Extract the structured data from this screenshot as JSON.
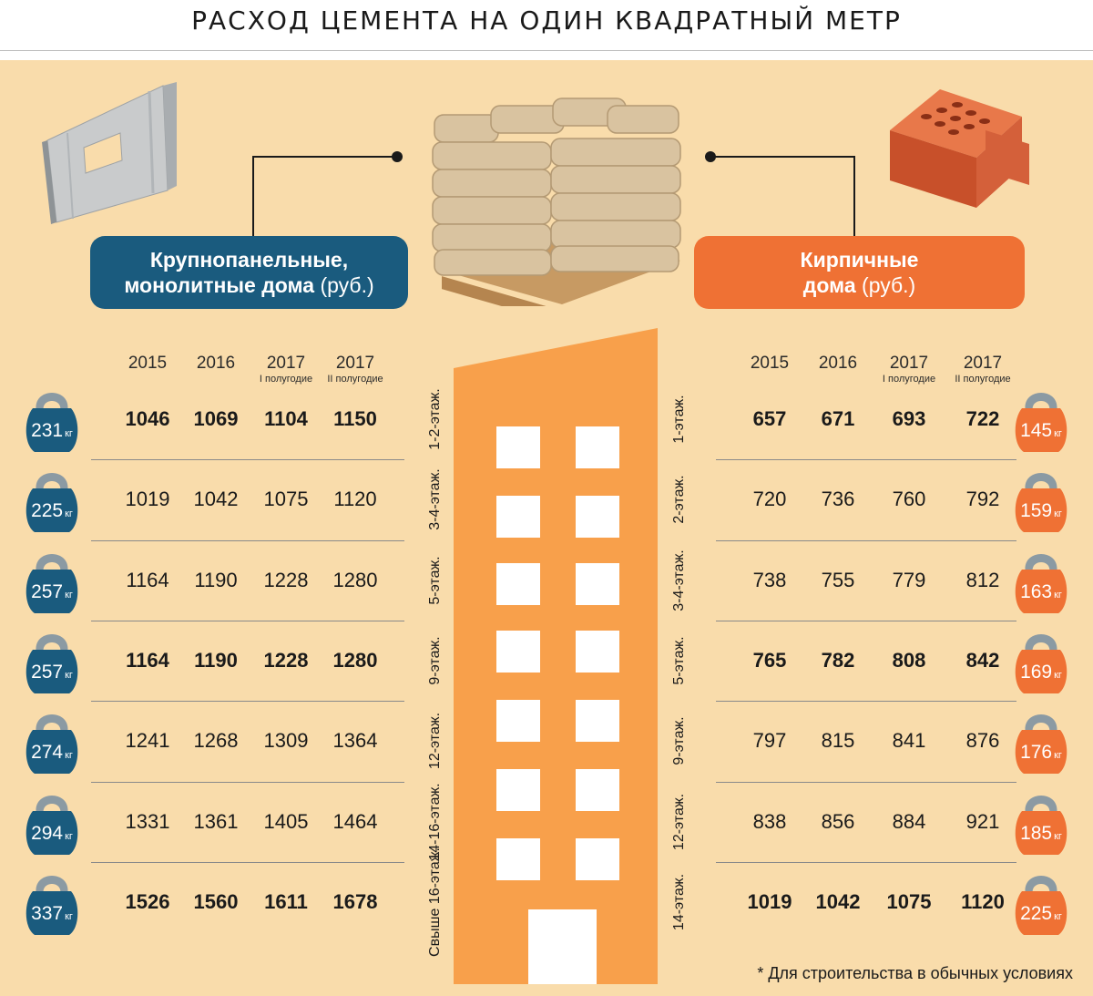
{
  "title": "РАСХОД ЦЕМЕНТА НА ОДИН КВАДРАТНЫЙ МЕТР",
  "colors": {
    "background": "#f9dcab",
    "blue": "#1a5b7e",
    "orange": "#ef7134",
    "building": "#f8a04b",
    "weight_blue": "#1a5b7e",
    "weight_gray": "#8b9aa3"
  },
  "left_panel": {
    "label_line1": "Крупнопанельные,",
    "label_line2": "монолитные дома",
    "label_unit": "(руб.)"
  },
  "right_panel": {
    "label_line1": "Кирпичные",
    "label_line2": "дома",
    "label_unit": "(руб.)"
  },
  "columns": [
    {
      "year": "2015",
      "sub": ""
    },
    {
      "year": "2016",
      "sub": ""
    },
    {
      "year": "2017",
      "sub": "I полугодие"
    },
    {
      "year": "2017",
      "sub": "II полугодие"
    }
  ],
  "footnote": "* Для строительства в обычных условиях",
  "chart_data": [
    {
      "type": "table",
      "title": "Крупнопанельные, монолитные дома (руб.)",
      "columns": [
        "2015",
        "2016",
        "2017 I полугодие",
        "2017 II полугодие"
      ],
      "rows": [
        {
          "floors": "1-2-этаж.",
          "weight": "231",
          "unit": "кг",
          "values": [
            "1046",
            "1069",
            "1104",
            "1150"
          ],
          "bold": true
        },
        {
          "floors": "3-4-этаж.",
          "weight": "225",
          "unit": "кг",
          "values": [
            "1019",
            "1042",
            "1075",
            "1120"
          ],
          "bold": false
        },
        {
          "floors": "5-этаж.",
          "weight": "257",
          "unit": "кг",
          "values": [
            "1164",
            "1190",
            "1228",
            "1280"
          ],
          "bold": false
        },
        {
          "floors": "9-этаж.",
          "weight": "257",
          "unit": "кг",
          "values": [
            "1164",
            "1190",
            "1228",
            "1280"
          ],
          "bold": true
        },
        {
          "floors": "12-этаж.",
          "weight": "274",
          "unit": "кг",
          "values": [
            "1241",
            "1268",
            "1309",
            "1364"
          ],
          "bold": false
        },
        {
          "floors": "14-16-этаж.",
          "weight": "294",
          "unit": "кг",
          "values": [
            "1331",
            "1361",
            "1405",
            "1464"
          ],
          "bold": false
        },
        {
          "floors": "Свыше 16-этаж.",
          "weight": "337",
          "unit": "кг",
          "values": [
            "1526",
            "1560",
            "1611",
            "1678"
          ],
          "bold": true
        }
      ]
    },
    {
      "type": "table",
      "title": "Кирпичные дома (руб.)",
      "columns": [
        "2015",
        "2016",
        "2017 I полугодие",
        "2017 II полугодие"
      ],
      "rows": [
        {
          "floors": "1-этаж.",
          "weight": "145",
          "unit": "кг",
          "values": [
            "657",
            "671",
            "693",
            "722"
          ],
          "bold": true
        },
        {
          "floors": "2-этаж.",
          "weight": "159",
          "unit": "кг",
          "values": [
            "720",
            "736",
            "760",
            "792"
          ],
          "bold": false
        },
        {
          "floors": "3-4-этаж.",
          "weight": "163",
          "unit": "кг",
          "values": [
            "738",
            "755",
            "779",
            "812"
          ],
          "bold": false
        },
        {
          "floors": "5-этаж.",
          "weight": "169",
          "unit": "кг",
          "values": [
            "765",
            "782",
            "808",
            "842"
          ],
          "bold": true
        },
        {
          "floors": "9-этаж.",
          "weight": "176",
          "unit": "кг",
          "values": [
            "797",
            "815",
            "841",
            "876"
          ],
          "bold": false
        },
        {
          "floors": "12-этаж.",
          "weight": "185",
          "unit": "кг",
          "values": [
            "838",
            "856",
            "884",
            "921"
          ],
          "bold": false
        },
        {
          "floors": "14-этаж.",
          "weight": "225",
          "unit": "кг",
          "values": [
            "1019",
            "1042",
            "1075",
            "1120"
          ],
          "bold": true
        }
      ]
    }
  ]
}
